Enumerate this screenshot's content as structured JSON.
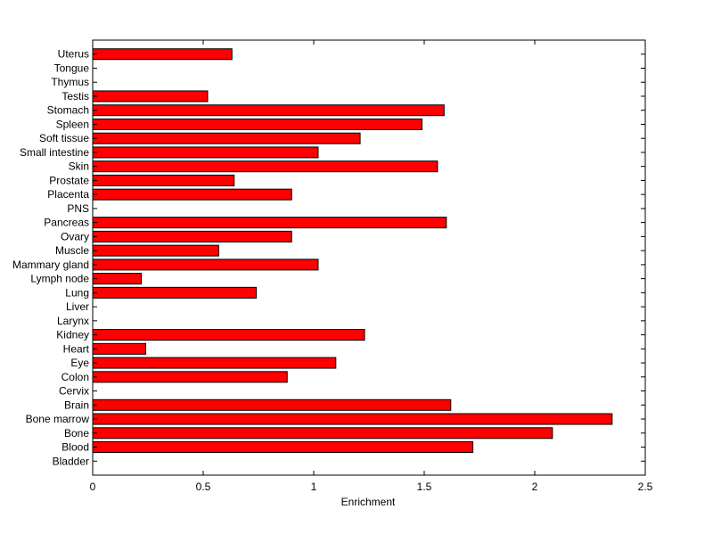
{
  "chart_data": {
    "type": "bar",
    "orientation": "horizontal",
    "title": "",
    "xlabel": "Enrichment",
    "ylabel": "",
    "xlim": [
      0,
      2.5
    ],
    "xticks": [
      0,
      0.5,
      1,
      1.5,
      2,
      2.5
    ],
    "xtick_labels": [
      "0",
      "0.5",
      "1",
      "1.5",
      "2",
      "2.5"
    ],
    "grid": false,
    "legend": "none",
    "bar_color": "#ff0000",
    "categories": [
      "Bladder",
      "Blood",
      "Bone",
      "Bone marrow",
      "Brain",
      "Cervix",
      "Colon",
      "Eye",
      "Heart",
      "Kidney",
      "Larynx",
      "Liver",
      "Lung",
      "Lymph node",
      "Mammary gland",
      "Muscle",
      "Ovary",
      "Pancreas",
      "PNS",
      "Placenta",
      "Prostate",
      "Skin",
      "Small intestine",
      "Soft tissue",
      "Spleen",
      "Stomach",
      "Testis",
      "Thymus",
      "Tongue",
      "Uterus"
    ],
    "values": [
      0,
      1.72,
      2.08,
      2.35,
      1.62,
      0,
      0.88,
      1.1,
      0.24,
      1.23,
      0,
      0,
      0.74,
      0.22,
      1.02,
      0.57,
      0.9,
      1.6,
      0,
      0.9,
      0.64,
      1.56,
      1.02,
      1.21,
      1.49,
      1.59,
      0.52,
      0,
      0,
      0.63
    ]
  }
}
